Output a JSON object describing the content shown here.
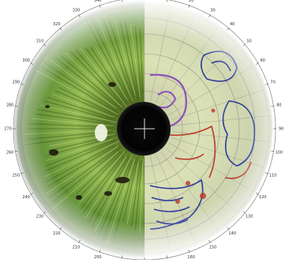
{
  "image": {
    "subject": "iris chart overlaid on a green eye",
    "colors": {
      "background": "#ffffff",
      "iris_green": "#6f9a3a",
      "iris_light": "#b8d77a",
      "iris_dark": "#203a14",
      "pupil": "#050505",
      "chart_paper": "#efe7c8",
      "chart_lines": "#7f7f7f",
      "zone_blue": "#2e3d9d",
      "zone_purple": "#8a52b8",
      "zone_red": "#b83a2a"
    }
  },
  "degree_scale": {
    "labels": [
      "0",
      "10",
      "20",
      "30",
      "40",
      "50",
      "60",
      "70",
      "80",
      "90",
      "100",
      "110",
      "120",
      "130",
      "140",
      "150",
      "160",
      "170",
      "180",
      "190",
      "200",
      "210",
      "220",
      "230",
      "240",
      "250",
      "260",
      "270",
      "280",
      "290",
      "300",
      "310",
      "320",
      "330",
      "340",
      "350"
    ]
  }
}
